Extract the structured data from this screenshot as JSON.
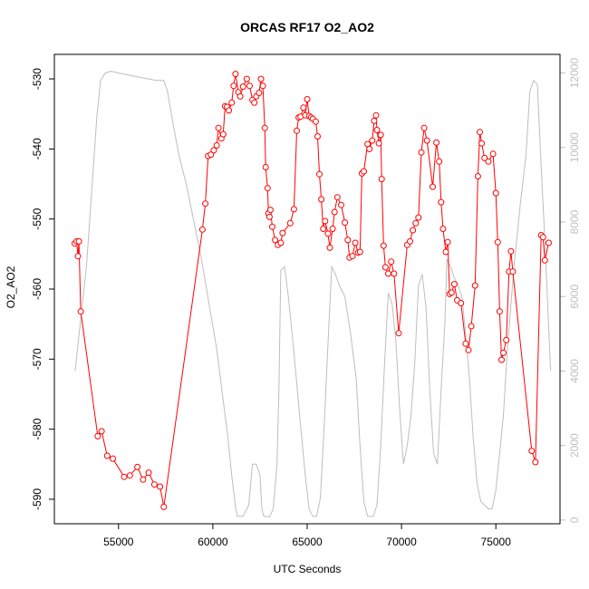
{
  "chart_data": {
    "type": "line",
    "title": "ORCAS RF17 O2_AO2",
    "xlabel": "UTC Seconds",
    "ylabel": "O2_AO2",
    "y2label": "",
    "xlim": [
      51600,
      78400
    ],
    "ylim": [
      -593.5,
      -526.5
    ],
    "y2lim": [
      -100,
      12500
    ],
    "x_ticks": [
      55000,
      60000,
      65000,
      70000,
      75000
    ],
    "x_tick_labels": [
      "55000",
      "60000",
      "65000",
      "70000",
      "75000"
    ],
    "y_ticks": [
      -530,
      -540,
      -550,
      -560,
      -570,
      -580,
      -590
    ],
    "y_tick_labels": [
      "-530",
      "-540",
      "-550",
      "-560",
      "-570",
      "-580",
      "-590"
    ],
    "y2_ticks": [
      0,
      2000,
      4000,
      6000,
      8000,
      10000,
      12000
    ],
    "y2_tick_labels": [
      "0",
      "2000",
      "4000",
      "6000",
      "8000",
      "10000",
      "12000"
    ],
    "colors": {
      "series": "#ff0000",
      "altitude": "#bebebe",
      "axis": "#000000",
      "right_axis": "#bfbfbf"
    },
    "series": [
      {
        "axis": "left",
        "style": "line+points",
        "color": "#ff0000",
        "x": [
          52680,
          52780,
          52850,
          52900,
          53000,
          53900,
          54100,
          54400,
          54700,
          55300,
          55600,
          56000,
          56300,
          56600,
          56900,
          57200,
          57400,
          59450,
          59600,
          59750,
          59900,
          60050,
          60200,
          60300,
          60450,
          60550,
          60650,
          60750,
          60850,
          61000,
          61100,
          61200,
          61350,
          61450,
          61600,
          61800,
          61950,
          62100,
          62200,
          62300,
          62450,
          62550,
          62650,
          62750,
          62800,
          62900,
          62950,
          63000,
          63050,
          63150,
          63300,
          63450,
          63600,
          63700,
          64100,
          64300,
          64450,
          64550,
          64650,
          64800,
          64900,
          65000,
          65100,
          65200,
          65300,
          65450,
          65550,
          65650,
          65750,
          65850,
          65950,
          66100,
          66200,
          66350,
          66450,
          66600,
          66800,
          67000,
          67150,
          67250,
          67400,
          67550,
          67700,
          67800,
          67900,
          68000,
          68200,
          68300,
          68450,
          68550,
          68650,
          68700,
          68800,
          68900,
          68950,
          69050,
          69150,
          69300,
          69450,
          69600,
          69850,
          70300,
          70450,
          70600,
          70750,
          70900,
          71050,
          71200,
          71350,
          71650,
          71850,
          72000,
          72100,
          72200,
          72350,
          72450,
          72550,
          72650,
          72800,
          72950,
          73150,
          73400,
          73550,
          73700,
          73900,
          74050,
          74150,
          74250,
          74400,
          74600,
          74850,
          75000,
          75100,
          75200,
          75300,
          75400,
          75550,
          75700,
          75800,
          75900,
          76900,
          77100,
          77400,
          77500,
          77600,
          77800
        ],
        "values": [
          -553.5,
          -553.2,
          -555.3,
          -553.2,
          -563.2,
          -581.0,
          -580.3,
          -583.8,
          -584.2,
          -586.8,
          -586.6,
          -585.4,
          -587.2,
          -586.2,
          -587.9,
          -588.2,
          -591.1,
          -551.5,
          -547.8,
          -541.0,
          -540.8,
          -540.2,
          -539.5,
          -537.0,
          -538.5,
          -537.9,
          -533.9,
          -534.0,
          -534.5,
          -533.4,
          -531.0,
          -529.3,
          -531.9,
          -532.5,
          -531.1,
          -530.0,
          -531.0,
          -533.0,
          -533.4,
          -532.5,
          -532.0,
          -530.0,
          -531.0,
          -537.0,
          -542.6,
          -545.6,
          -549.2,
          -549.7,
          -548.7,
          -551.1,
          -553.0,
          -553.7,
          -553.4,
          -552.0,
          -550.6,
          -548.6,
          -537.4,
          -535.5,
          -535.4,
          -534.1,
          -535.2,
          -532.9,
          -535.3,
          -535.5,
          -535.7,
          -536.1,
          -538.2,
          -543.6,
          -547.2,
          -551.4,
          -550.3,
          -552.1,
          -554.1,
          -551.4,
          -549.0,
          -546.9,
          -548.0,
          -550.5,
          -553.0,
          -555.5,
          -555.3,
          -553.4,
          -554.8,
          -554.7,
          -543.5,
          -543.2,
          -539.3,
          -540.0,
          -538.8,
          -536.0,
          -535.2,
          -537.3,
          -539.2,
          -538.0,
          -544.3,
          -553.8,
          -556.9,
          -557.8,
          -556.1,
          -557.8,
          -566.3,
          -553.7,
          -553.2,
          -551.6,
          -550.6,
          -549.8,
          -540.5,
          -537.0,
          -538.8,
          -545.4,
          -539.1,
          -541.8,
          -547.6,
          -551.4,
          -554.7,
          -553.3,
          -560.7,
          -560.5,
          -559.3,
          -561.6,
          -562.0,
          -567.8,
          -568.7,
          -565.3,
          -559.5,
          -543.9,
          -537.6,
          -539.2,
          -541.3,
          -541.8,
          -540.7,
          -546.3,
          -553.3,
          -563.2,
          -570.1,
          -569.1,
          -567.3,
          -557.5,
          -554.6,
          -557.5,
          -583.1,
          -584.7,
          -552.3,
          -552.6,
          -555.9,
          -553.4
        ]
      },
      {
        "axis": "right",
        "style": "line",
        "color": "#bebebe",
        "x": [
          52700,
          53300,
          53850,
          54050,
          54300,
          54600,
          55000,
          55500,
          56000,
          56500,
          57000,
          57400,
          57600,
          57900,
          58200,
          58600,
          59000,
          59400,
          59800,
          60200,
          60500,
          60800,
          61000,
          61200,
          61300,
          61400,
          61600,
          61900,
          62100,
          62200,
          62300,
          62500,
          62600,
          62700,
          62800,
          63000,
          63200,
          63400,
          63500,
          63600,
          63800,
          64000,
          64300,
          64600,
          64900,
          65100,
          65300,
          65400,
          65500,
          65700,
          65900,
          66100,
          66300,
          66500,
          66700,
          67000,
          67300,
          67600,
          67800,
          68000,
          68200,
          68300,
          68500,
          68700,
          68900,
          69100,
          69300,
          69500,
          69700,
          69900,
          70100,
          70300,
          70500,
          70700,
          70900,
          71100,
          71300,
          71500,
          71700,
          71900,
          72100,
          72300,
          72400,
          72600,
          72800,
          73000,
          73200,
          73400,
          73600,
          73800,
          74000,
          74200,
          74400,
          74600,
          74800,
          75000,
          75200,
          75400,
          75600,
          75800,
          76000,
          76300,
          76600,
          76800,
          77000,
          77200,
          77400,
          77600,
          77900
        ],
        "values": [
          4000,
          6800,
          10800,
          11800,
          12000,
          12050,
          12000,
          11950,
          11900,
          11850,
          11800,
          11800,
          11500,
          10600,
          9800,
          9000,
          8000,
          7000,
          5800,
          4600,
          3400,
          2200,
          1200,
          350,
          100,
          100,
          100,
          400,
          1500,
          1500,
          1500,
          1200,
          300,
          100,
          100,
          80,
          300,
          1500,
          3500,
          6700,
          6800,
          6000,
          4500,
          2800,
          1200,
          300,
          100,
          100,
          100,
          600,
          2500,
          4700,
          6800,
          6600,
          6300,
          6000,
          5000,
          3800,
          2000,
          500,
          100,
          100,
          100,
          400,
          2000,
          4200,
          6100,
          5800,
          4800,
          3000,
          1500,
          2000,
          2800,
          4200,
          6300,
          6600,
          5700,
          3500,
          1800,
          1500,
          3500,
          5300,
          7000,
          6800,
          6500,
          6300,
          6000,
          5000,
          3800,
          2200,
          1000,
          500,
          400,
          300,
          300,
          800,
          1800,
          2800,
          4500,
          5800,
          7000,
          8500,
          9800,
          11500,
          11800,
          11700,
          9500,
          7500,
          4000
        ]
      }
    ]
  }
}
